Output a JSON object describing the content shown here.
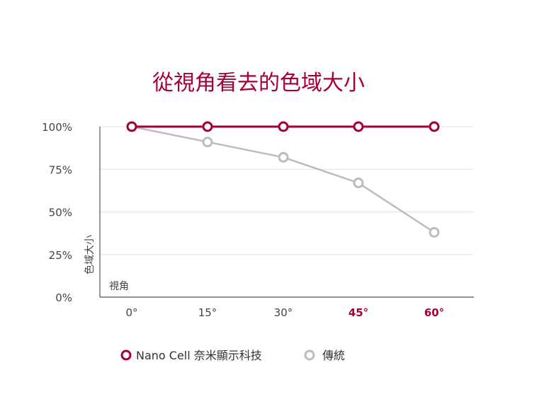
{
  "chart_data": {
    "type": "line",
    "title": "從視角看去的色域大小",
    "xlabel": "視角",
    "ylabel": "色域大小",
    "categories": [
      "0°",
      "15°",
      "30°",
      "45°",
      "60°"
    ],
    "highlighted_categories": [
      "45°",
      "60°"
    ],
    "y_ticks": [
      "0%",
      "25%",
      "50%",
      "75%",
      "100%"
    ],
    "ylim": [
      0,
      100
    ],
    "grid": true,
    "legend_position": "bottom",
    "series": [
      {
        "name": "Nano Cell 奈米顯示科技",
        "values": [
          100,
          100,
          100,
          100,
          100
        ],
        "color": "#a50034"
      },
      {
        "name": "傳統",
        "values": [
          100,
          91,
          82,
          67,
          38
        ],
        "color": "#bdbdbd"
      }
    ]
  },
  "colors": {
    "accent": "#a50034",
    "title": "#a50034",
    "axis_text": "#444444",
    "axis_line": "#555555",
    "grid": "#e3e3e3"
  }
}
